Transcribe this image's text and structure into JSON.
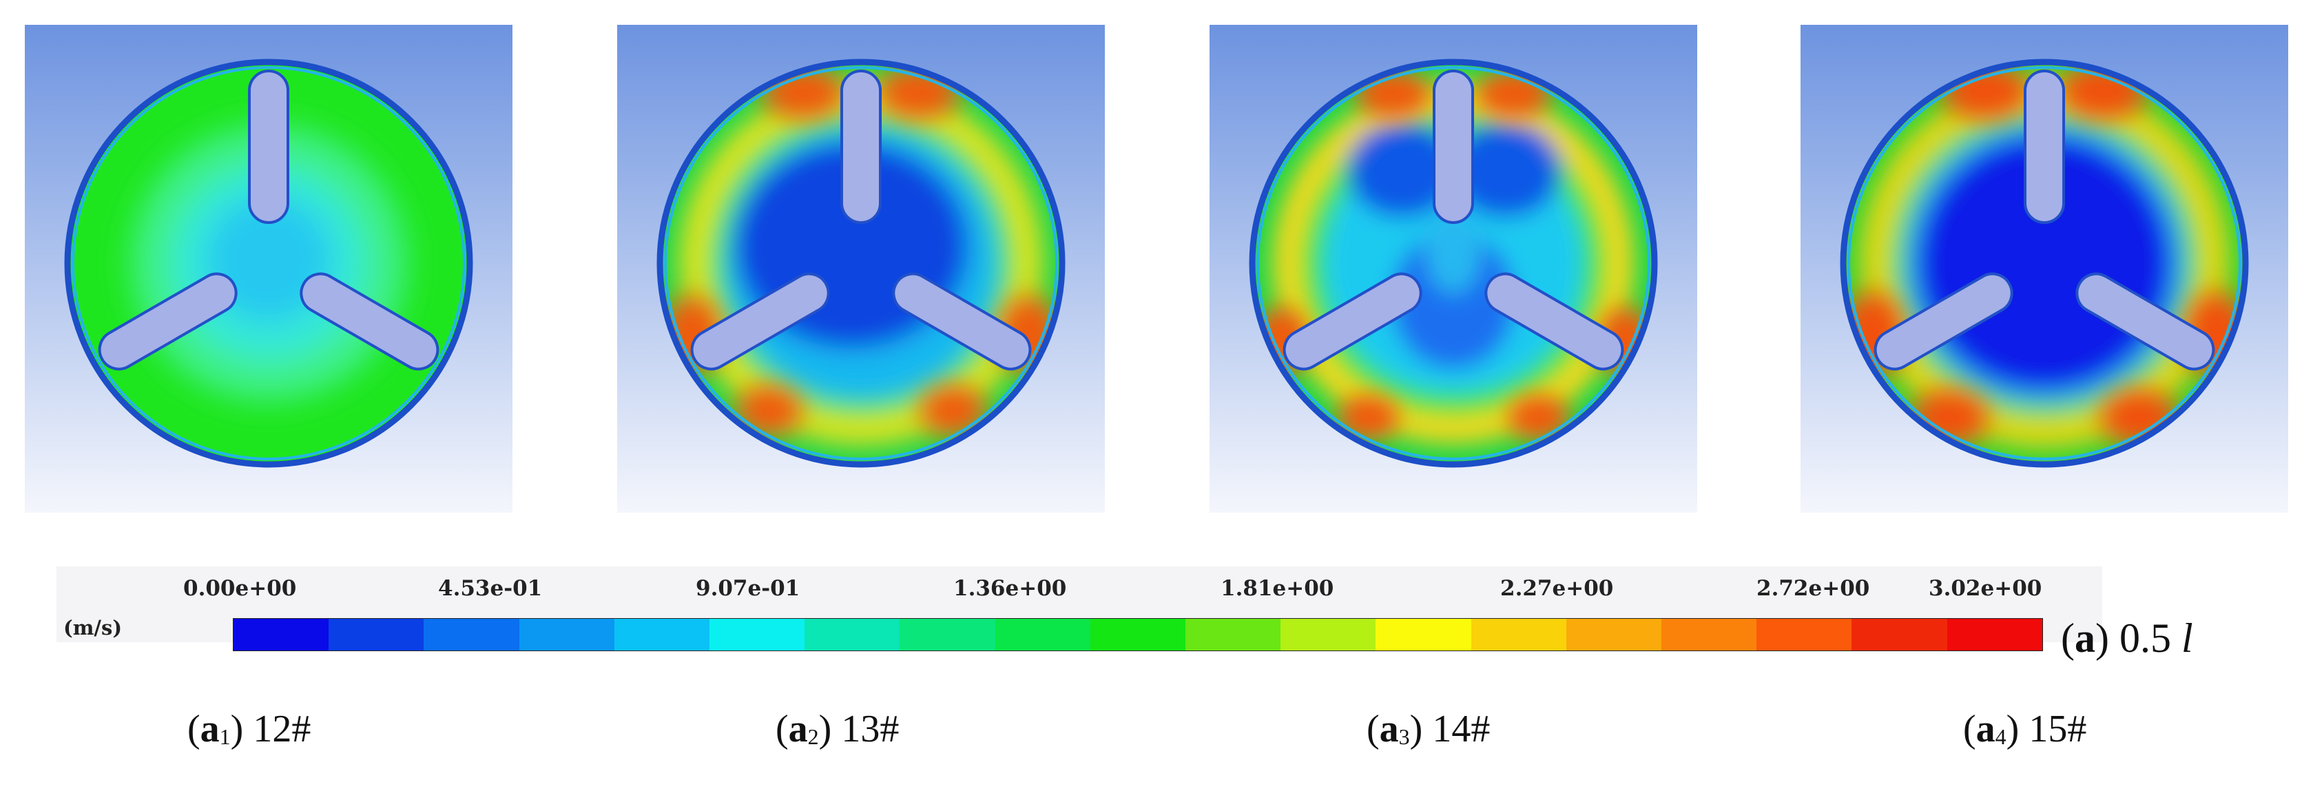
{
  "panels": [
    {
      "label_letter": "a",
      "label_index": "1",
      "label_value": "12#",
      "pattern": "uniform"
    },
    {
      "label_letter": "a",
      "label_index": "2",
      "label_value": "13#",
      "pattern": "ring"
    },
    {
      "label_letter": "a",
      "label_index": "3",
      "label_value": "14#",
      "pattern": "mixed"
    },
    {
      "label_letter": "a",
      "label_index": "4",
      "label_value": "15#",
      "pattern": "strong-ring"
    }
  ],
  "colorbar": {
    "unit": "(m/s)",
    "tick_labels": [
      "0.00e+00",
      "4.53e-01",
      "9.07e-01",
      "1.36e+00",
      "1.81e+00",
      "2.27e+00",
      "2.72e+00",
      "3.02e+00"
    ],
    "colors": [
      "#0a0ae8",
      "#0a3fe6",
      "#0a6ff0",
      "#0a98f2",
      "#0ac2f5",
      "#0af0f0",
      "#0ae6b4",
      "#0ae67a",
      "#0ae648",
      "#14e614",
      "#6ae614",
      "#b4f014",
      "#fafa0a",
      "#fad20a",
      "#faaa0a",
      "#fa820a",
      "#fa5a0a",
      "#f0280a",
      "#f00a0a"
    ]
  },
  "main_label": {
    "letter": "a",
    "value": "0.5",
    "unit": "l"
  }
}
